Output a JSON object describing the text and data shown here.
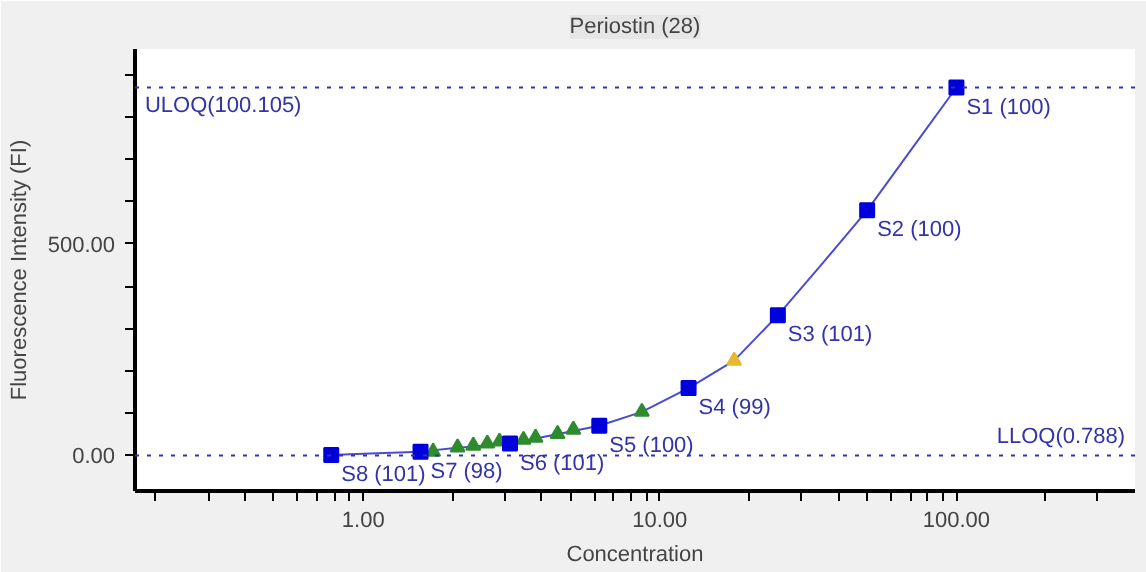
{
  "chart_data": {
    "type": "scatter",
    "title": "Periostin (28)",
    "xlabel": "Concentration",
    "ylabel": "Fluorescence Intensity (FI)",
    "log": "x",
    "grid": false,
    "xlim": [
      0.17,
      400
    ],
    "ylim": [
      -84,
      960
    ],
    "xticks": [
      {
        "value": 0.2,
        "label": null
      },
      {
        "value": 0.3,
        "label": null
      },
      {
        "value": 0.4,
        "label": null
      },
      {
        "value": 0.5,
        "label": null
      },
      {
        "value": 0.6,
        "label": null
      },
      {
        "value": 0.7,
        "label": null
      },
      {
        "value": 0.8,
        "label": null
      },
      {
        "value": 0.9,
        "label": null
      },
      {
        "value": 1,
        "label": "1.00"
      },
      {
        "value": 2,
        "label": null
      },
      {
        "value": 3,
        "label": null
      },
      {
        "value": 4,
        "label": null
      },
      {
        "value": 5,
        "label": null
      },
      {
        "value": 6,
        "label": null
      },
      {
        "value": 7,
        "label": null
      },
      {
        "value": 8,
        "label": null
      },
      {
        "value": 9,
        "label": null
      },
      {
        "value": 10,
        "label": "10.00"
      },
      {
        "value": 20,
        "label": null
      },
      {
        "value": 30,
        "label": null
      },
      {
        "value": 40,
        "label": null
      },
      {
        "value": 50,
        "label": null
      },
      {
        "value": 60,
        "label": null
      },
      {
        "value": 70,
        "label": null
      },
      {
        "value": 80,
        "label": null
      },
      {
        "value": 90,
        "label": null
      },
      {
        "value": 100,
        "label": "100.00"
      },
      {
        "value": 200,
        "label": null
      },
      {
        "value": 300,
        "label": null
      }
    ],
    "yticks": [
      {
        "value": 0,
        "label": "0.00"
      },
      {
        "value": 100,
        "label": null
      },
      {
        "value": 200,
        "label": null
      },
      {
        "value": 300,
        "label": null
      },
      {
        "value": 400,
        "label": null
      },
      {
        "value": 500,
        "label": "500.00"
      },
      {
        "value": 600,
        "label": null
      },
      {
        "value": 700,
        "label": null
      },
      {
        "value": 800,
        "label": null
      },
      {
        "value": 900,
        "label": null
      }
    ],
    "ref_lines": [
      {
        "axis": "y",
        "value": 869,
        "label": "ULOQ(100.105)",
        "color": "#3333aa",
        "line_style": "dotted"
      },
      {
        "axis": "y",
        "value": 0,
        "label": "LLOQ(0.788)",
        "color": "#3333aa",
        "line_style": "dotted"
      }
    ],
    "series": [
      {
        "type": "line",
        "color": "#4b4bd0",
        "line_style": "solid",
        "x": [
          0.78,
          1.0,
          1.56,
          2.0,
          3.125,
          4.5,
          6.25,
          8.7,
          12.5,
          17.8,
          25,
          35,
          50,
          70,
          100
        ],
        "values": [
          1,
          4,
          9,
          17,
          28,
          50,
          70,
          103,
          159,
          224,
          331,
          450,
          579,
          720,
          869
        ]
      },
      {
        "color": "#2e8b2e",
        "marker": "triangle",
        "x": [
          1.72,
          2.08,
          2.35,
          2.62,
          2.88,
          3.47,
          3.81,
          4.52,
          5.11,
          8.7
        ],
        "values": [
          9,
          19,
          23,
          28,
          33,
          37,
          42,
          51,
          61,
          103
        ]
      },
      {
        "color": "#e8b830",
        "marker": "triangle",
        "x": [
          17.8
        ],
        "values": [
          224
        ]
      },
      {
        "color": "#0000dd",
        "marker": "square",
        "x": [
          100,
          50,
          25,
          12.5,
          6.25,
          3.125,
          1.56,
          0.78
        ],
        "values": [
          869,
          579,
          331,
          159,
          70,
          28,
          9,
          1
        ],
        "value_labels": [
          "S1 (100)",
          "S2 (100)",
          "S3 (101)",
          "S4 (99)",
          "S5 (100)",
          "S6 (101)",
          "S7 (98)",
          "S8 (101)"
        ]
      }
    ]
  }
}
